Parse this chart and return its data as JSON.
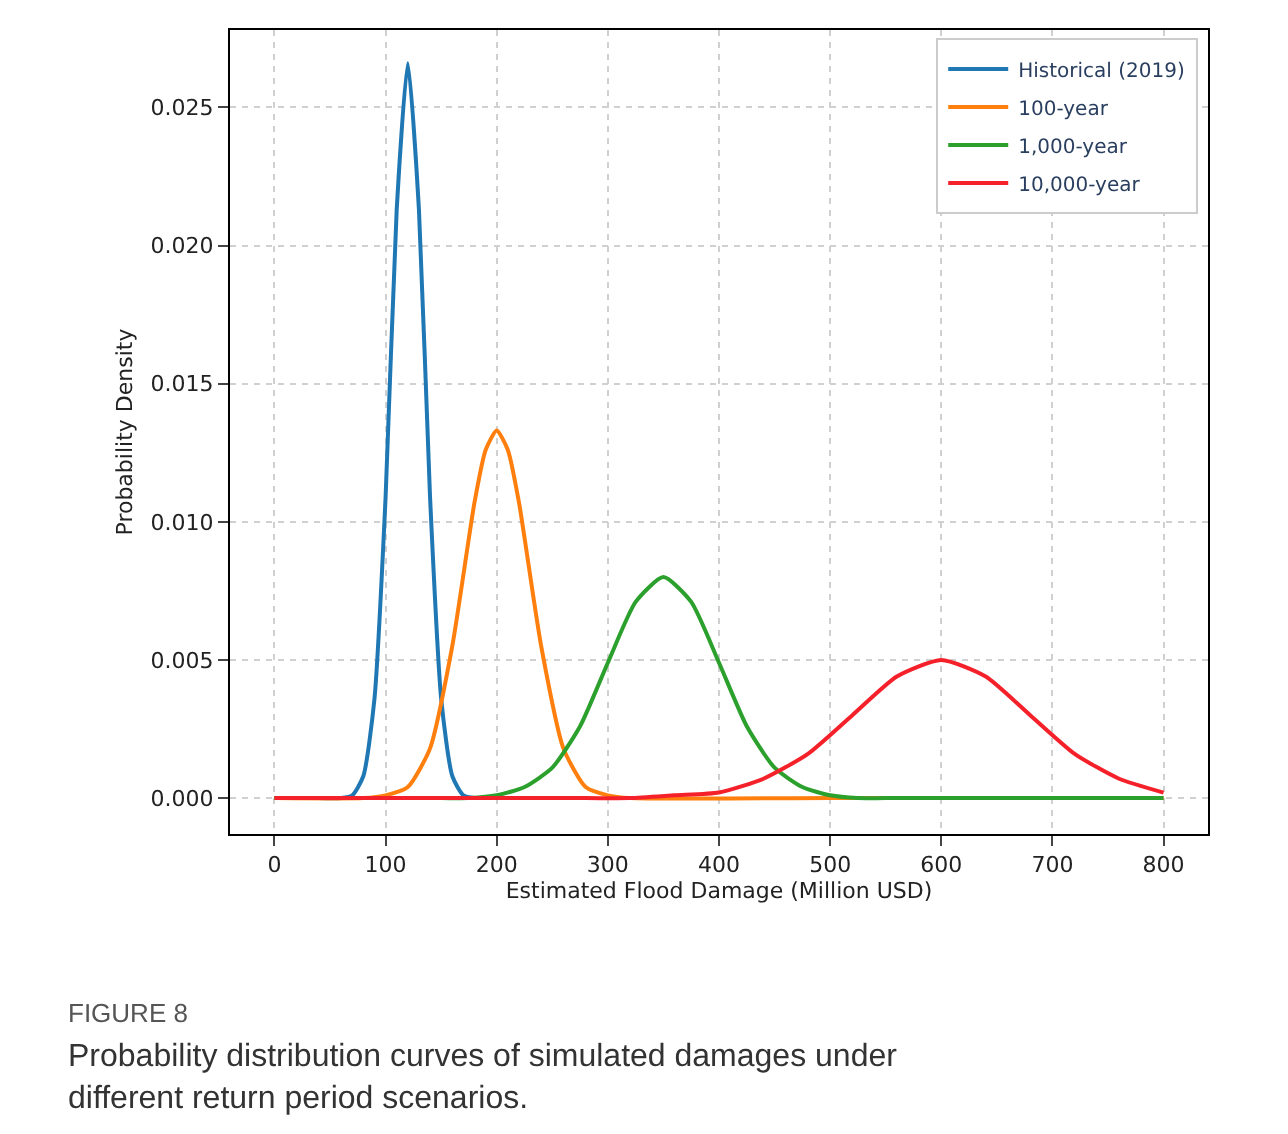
{
  "chart_data": {
    "type": "line",
    "xlabel": "Estimated Flood Damage (Million USD)",
    "ylabel": "Probability Density",
    "series": [
      {
        "name": "Historical (2019)",
        "color": "#1f77b4",
        "x": [
          0,
          40,
          60,
          70,
          80,
          90,
          100,
          110,
          120,
          130,
          140,
          150,
          160,
          170,
          180
        ],
        "values": [
          0,
          0,
          0,
          0.0001,
          0.0008,
          0.0036,
          0.0109,
          0.0213,
          0.0266,
          0.0213,
          0.0109,
          0.0036,
          0.0008,
          0.0001,
          0
        ]
      },
      {
        "name": "100-year",
        "color": "#ff7f0e",
        "x": [
          0,
          80,
          100,
          120,
          140,
          160,
          180,
          190,
          200,
          210,
          220,
          240,
          260,
          280,
          300,
          320,
          500,
          800
        ],
        "values": [
          0,
          0,
          0.0001,
          0.0004,
          0.0018,
          0.0055,
          0.0107,
          0.0126,
          0.0133,
          0.0126,
          0.0107,
          0.0055,
          0.0018,
          0.0004,
          0.0001,
          0,
          0,
          0
        ]
      },
      {
        "name": "1,000-year",
        "color": "#2ca02c",
        "x": [
          0,
          150,
          175,
          200,
          225,
          250,
          275,
          300,
          325,
          350,
          375,
          400,
          425,
          450,
          475,
          500,
          525,
          550,
          800
        ],
        "values": [
          0,
          0,
          0,
          0.0001,
          0.0004,
          0.0011,
          0.0026,
          0.0049,
          0.0071,
          0.008,
          0.0071,
          0.0049,
          0.0026,
          0.0011,
          0.0004,
          0.0001,
          0,
          0,
          0
        ]
      },
      {
        "name": "10,000-year",
        "color": "#f5212a",
        "x": [
          0,
          280,
          320,
          360,
          400,
          440,
          480,
          520,
          560,
          600,
          640,
          680,
          720,
          760,
          800
        ],
        "values": [
          0,
          0,
          0,
          0.0001,
          0.0002,
          0.0007,
          0.0016,
          0.003,
          0.0044,
          0.005,
          0.0044,
          0.003,
          0.0016,
          0.0007,
          0.0002
        ]
      }
    ],
    "xlim": [
      -40,
      840
    ],
    "xticks": [
      0,
      100,
      200,
      300,
      400,
      500,
      600,
      700,
      800
    ],
    "ylim": [
      -0.0013,
      0.0278
    ],
    "yticks": [
      {
        "value": 0,
        "label": "0.000"
      },
      {
        "value": 0.005,
        "label": "0.005"
      },
      {
        "value": 0.01,
        "label": "0.010"
      },
      {
        "value": 0.015,
        "label": "0.015"
      },
      {
        "value": 0.02,
        "label": "0.020"
      },
      {
        "value": 0.025,
        "label": "0.025"
      }
    ],
    "grid": true,
    "legend": "top right",
    "line_style": "solid",
    "annotations": [
      "FIGURE 8",
      "Probability distribution curves of simulated damages under different return period scenarios."
    ]
  }
}
